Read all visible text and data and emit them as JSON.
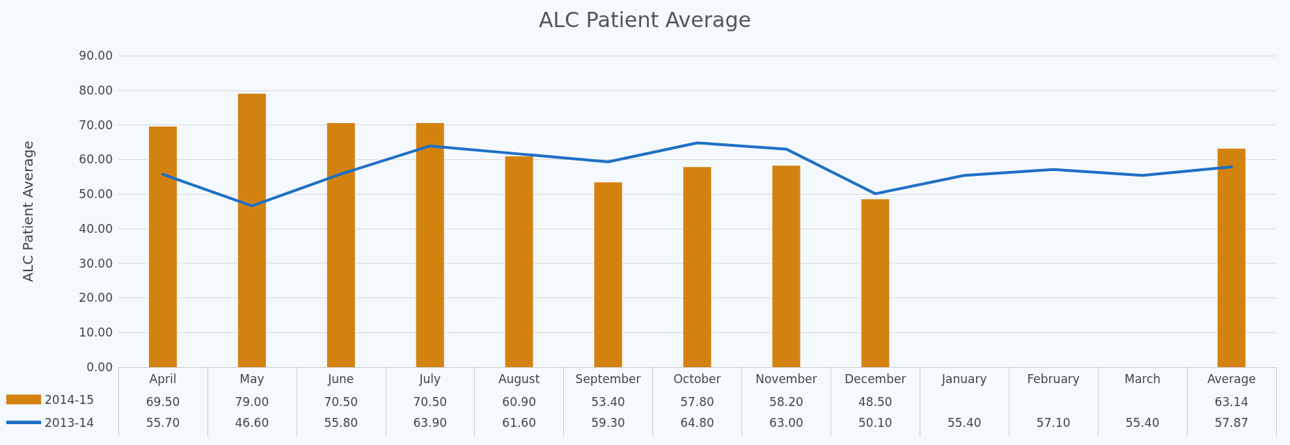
{
  "chart_data": {
    "type": "bar",
    "title": "ALC Patient Average",
    "ylabel": "ALC Patient Average",
    "categories": [
      "April",
      "May",
      "June",
      "July",
      "August",
      "September",
      "October",
      "November",
      "December",
      "January",
      "February",
      "March",
      "Average"
    ],
    "series": [
      {
        "name": "2014-15",
        "color": "#d4820f",
        "values": [
          69.5,
          79.0,
          70.5,
          70.5,
          60.9,
          53.4,
          57.8,
          58.2,
          48.5,
          null,
          null,
          null,
          63.14
        ],
        "value_labels": [
          "69.50",
          "79.00",
          "70.50",
          "70.50",
          "60.90",
          "53.40",
          "57.80",
          "58.20",
          "48.50",
          null,
          null,
          null,
          "63.14"
        ]
      },
      {
        "name": "2013-14",
        "type": "line",
        "color": "#1f6fc5",
        "values": [
          55.7,
          46.6,
          55.8,
          63.9,
          61.6,
          59.3,
          64.8,
          63.0,
          50.1,
          55.4,
          57.1,
          55.4,
          57.87
        ],
        "value_labels": [
          "55.70",
          "46.60",
          "55.80",
          "63.90",
          "61.60",
          "59.30",
          "64.80",
          "63.00",
          "50.10",
          "55.40",
          "57.10",
          "55.40",
          "57.87"
        ]
      }
    ],
    "ylim": [
      0,
      90
    ],
    "yticks": [
      {
        "value": 0,
        "label": "0.00"
      },
      {
        "value": 10,
        "label": "10.00"
      },
      {
        "value": 20,
        "label": "20.00"
      },
      {
        "value": 30,
        "label": "30.00"
      },
      {
        "value": 40,
        "label": "40.00"
      },
      {
        "value": 50,
        "label": "50.00"
      },
      {
        "value": 60,
        "label": "60.00"
      },
      {
        "value": 70,
        "label": "70.00"
      },
      {
        "value": 80,
        "label": "80.00"
      },
      {
        "value": 90,
        "label": "90.00"
      }
    ],
    "grid": "y",
    "legend": "bottom left",
    "marker": "none",
    "line_style": "solid"
  }
}
